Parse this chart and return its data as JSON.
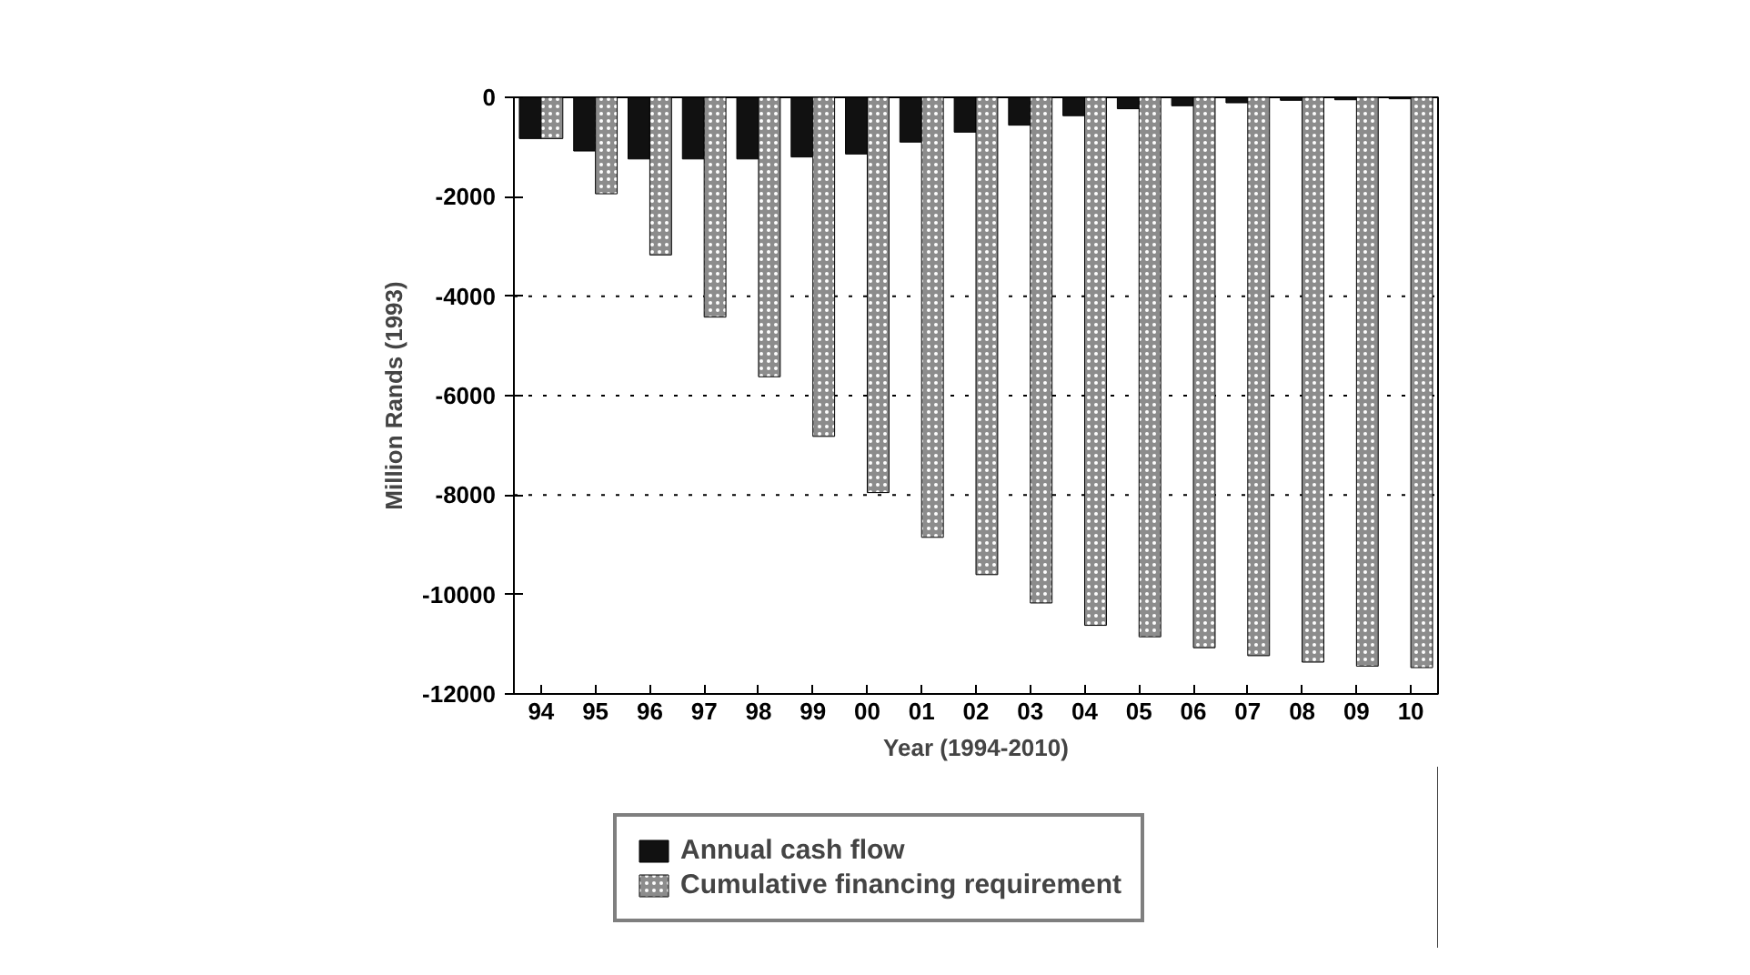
{
  "chart_data": {
    "type": "bar",
    "xlabel": "Year (1994-2010)",
    "ylabel": "Million Rands (1993)",
    "categories": [
      "94",
      "95",
      "96",
      "97",
      "98",
      "99",
      "00",
      "01",
      "02",
      "03",
      "04",
      "05",
      "06",
      "07",
      "08",
      "09",
      "10"
    ],
    "series": [
      {
        "name": "Annual cash flow",
        "color": "#111111",
        "values": [
          -830,
          -1080,
          -1240,
          -1240,
          -1240,
          -1200,
          -1140,
          -900,
          -700,
          -560,
          -370,
          -230,
          -170,
          -110,
          -60,
          -50,
          -30
        ]
      },
      {
        "name": "Cumulative financing requirement",
        "color": "#8c8c8c",
        "values": [
          -830,
          -1940,
          -3170,
          -4420,
          -5620,
          -6820,
          -7950,
          -8850,
          -9600,
          -10170,
          -10620,
          -10850,
          -11070,
          -11230,
          -11360,
          -11440,
          -11470
        ]
      }
    ],
    "ylim": [
      -12000,
      0
    ],
    "yticks": [
      0,
      -2000,
      -4000,
      -6000,
      -8000,
      -10000,
      -12000
    ],
    "ref_lines": [
      {
        "axis": "y",
        "value": -4000,
        "line_style": "dotted"
      },
      {
        "axis": "y",
        "value": -6000,
        "line_style": "dotted"
      },
      {
        "axis": "y",
        "value": -8000,
        "line_style": "dotted"
      }
    ],
    "grid": false,
    "legend": "bottom"
  }
}
